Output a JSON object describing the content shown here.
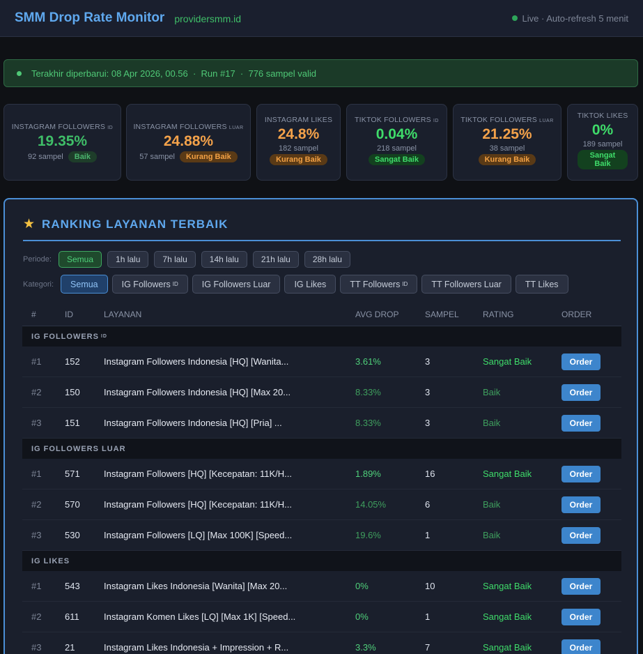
{
  "header": {
    "title": "SMM Drop Rate Monitor",
    "domain": "providersmm.id",
    "live_status": "Live · Auto-refresh 5 menit"
  },
  "banner": {
    "text": "Terakhir diperbarui: 08 Apr 2026, 00.56  ·  Run #17  ·  776 sampel valid"
  },
  "cards": [
    {
      "label": "Instagram Followers",
      "tag": "ID",
      "value": "19.35%",
      "samples": "92 sampel",
      "badge": "Baik",
      "tone": "green"
    },
    {
      "label": "Instagram Followers",
      "tag": "LUAR",
      "value": "24.88%",
      "samples": "57 sampel",
      "badge": "Kurang Baik",
      "tone": "orange"
    },
    {
      "label": "Instagram Likes",
      "tag": "",
      "value": "24.8%",
      "samples": "182 sampel",
      "badge": "Kurang Baik",
      "tone": "orange"
    },
    {
      "label": "TikTok Followers",
      "tag": "ID",
      "value": "0.04%",
      "samples": "218 sampel",
      "badge": "Sangat Baik",
      "tone": "bright"
    },
    {
      "label": "TikTok Followers",
      "tag": "LUAR",
      "value": "21.25%",
      "samples": "38 sampel",
      "badge": "Kurang Baik",
      "tone": "orange"
    },
    {
      "label": "TikTok Likes",
      "tag": "",
      "value": "0%",
      "samples": "189 sampel",
      "badge": "Sangat Baik",
      "tone": "bright"
    }
  ],
  "ranking": {
    "title": "RANKING LAYANAN TERBAIK",
    "icon": "star-icon",
    "periode_label": "Periode:",
    "periode_options": [
      "Semua",
      "1h lalu",
      "7h lalu",
      "14h lalu",
      "21h lalu",
      "28h lalu"
    ],
    "periode_selected": "Semua",
    "kategori_label": "Kategori:",
    "kategori_options": [
      {
        "label": "Semua",
        "tag": ""
      },
      {
        "label": "IG Followers",
        "tag": "ID"
      },
      {
        "label": "IG Followers Luar",
        "tag": ""
      },
      {
        "label": "IG Likes",
        "tag": ""
      },
      {
        "label": "TT Followers",
        "tag": "ID"
      },
      {
        "label": "TT Followers Luar",
        "tag": ""
      },
      {
        "label": "TT Likes",
        "tag": ""
      }
    ],
    "kategori_selected": "Semua",
    "columns": [
      "#",
      "ID",
      "LAYANAN",
      "AVG DROP",
      "SAMPEL",
      "RATING",
      "ORDER"
    ],
    "order_label": "Order",
    "groups": [
      {
        "name": "IG FOLLOWERS",
        "tag": "ID",
        "rows": [
          {
            "rank": "#1",
            "id": "152",
            "name": "Instagram Followers Indonesia [HQ] [Wanita...",
            "drop": "3.61%",
            "samples": "3",
            "rating": "Sangat Baik"
          },
          {
            "rank": "#2",
            "id": "150",
            "name": "Instagram Followers Indonesia [HQ] [Max 20...",
            "drop": "8.33%",
            "samples": "3",
            "rating": "Baik"
          },
          {
            "rank": "#3",
            "id": "151",
            "name": "Instagram Followers Indonesia [HQ] [Pria] ...",
            "drop": "8.33%",
            "samples": "3",
            "rating": "Baik"
          }
        ]
      },
      {
        "name": "IG FOLLOWERS LUAR",
        "tag": "",
        "rows": [
          {
            "rank": "#1",
            "id": "571",
            "name": "Instagram Followers [HQ] [Kecepatan: 11K/H...",
            "drop": "1.89%",
            "samples": "16",
            "rating": "Sangat Baik"
          },
          {
            "rank": "#2",
            "id": "570",
            "name": "Instagram Followers [HQ] [Kecepatan: 11K/H...",
            "drop": "14.05%",
            "samples": "6",
            "rating": "Baik"
          },
          {
            "rank": "#3",
            "id": "530",
            "name": "Instagram Followers [LQ] [Max 100K] [Speed...",
            "drop": "19.6%",
            "samples": "1",
            "rating": "Baik"
          }
        ]
      },
      {
        "name": "IG LIKES",
        "tag": "",
        "rows": [
          {
            "rank": "#1",
            "id": "543",
            "name": "Instagram Likes Indonesia [Wanita] [Max 20...",
            "drop": "0%",
            "samples": "10",
            "rating": "Sangat Baik"
          },
          {
            "rank": "#2",
            "id": "611",
            "name": "Instagram Komen Likes [LQ] [Max 1K] [Speed...",
            "drop": "0%",
            "samples": "1",
            "rating": "Sangat Baik"
          },
          {
            "rank": "#3",
            "id": "21",
            "name": "Instagram Likes Indonesia + Impression + R...",
            "drop": "3.3%",
            "samples": "7",
            "rating": "Sangat Baik"
          }
        ]
      }
    ]
  }
}
